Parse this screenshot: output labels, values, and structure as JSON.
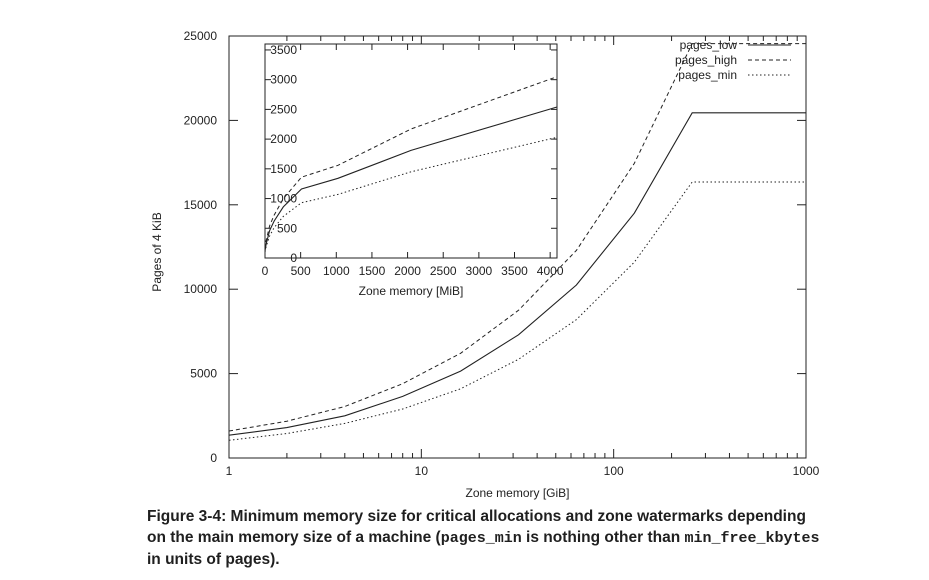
{
  "chart_data": [
    {
      "type": "line",
      "xscale": "log",
      "xlabel": "Zone memory [GiB]",
      "ylabel": "Pages of 4 KiB",
      "xlim": [
        1,
        1000
      ],
      "ylim": [
        0,
        25000
      ],
      "xticks": [
        "1",
        "10",
        "100",
        "1000"
      ],
      "yticks": [
        "0",
        "5000",
        "10000",
        "15000",
        "20000",
        "25000"
      ],
      "legend_position": "top-right",
      "series": [
        {
          "name": "pages_low",
          "style": "solid",
          "x": [
            1,
            2,
            4,
            8,
            16,
            32,
            64,
            128,
            256,
            1000
          ],
          "y": [
            1350,
            1800,
            2500,
            3650,
            5150,
            7300,
            10250,
            14500,
            20450,
            20450
          ]
        },
        {
          "name": "pages_high",
          "style": "dashed",
          "x": [
            1,
            2,
            4,
            8,
            16,
            32,
            64,
            128,
            256,
            1000
          ],
          "y": [
            1600,
            2180,
            3050,
            4400,
            6200,
            8750,
            12300,
            17450,
            24550,
            24550
          ]
        },
        {
          "name": "pages_min",
          "style": "dotted",
          "x": [
            1,
            2,
            4,
            8,
            16,
            32,
            64,
            128,
            256,
            1000
          ],
          "y": [
            1050,
            1450,
            2050,
            2900,
            4100,
            5850,
            8200,
            11600,
            16350,
            16350
          ]
        }
      ]
    },
    {
      "type": "line",
      "inset": true,
      "xlabel": "Zone memory [MiB]",
      "ylabel": "",
      "xlim": [
        0,
        4096
      ],
      "ylim": [
        0,
        3600
      ],
      "xticks": [
        "0",
        "500",
        "1000",
        "1500",
        "2000",
        "2500",
        "3000",
        "3500",
        "4000"
      ],
      "yticks": [
        "0",
        "500",
        "1000",
        "1500",
        "2000",
        "2500",
        "3000",
        "3500"
      ],
      "series": [
        {
          "name": "pages_low",
          "style": "solid",
          "x": [
            0,
            16,
            64,
            128,
            256,
            512,
            1024,
            2048,
            4096
          ],
          "y": [
            120,
            230,
            460,
            620,
            860,
            1160,
            1340,
            1810,
            2540
          ]
        },
        {
          "name": "pages_high",
          "style": "dashed",
          "x": [
            0,
            16,
            64,
            128,
            256,
            512,
            1024,
            2048,
            4096
          ],
          "y": [
            150,
            290,
            540,
            720,
            1000,
            1360,
            1560,
            2170,
            3050
          ]
        },
        {
          "name": "pages_min",
          "style": "dotted",
          "x": [
            0,
            16,
            64,
            128,
            256,
            512,
            1024,
            2048,
            4096
          ],
          "y": [
            100,
            190,
            370,
            510,
            700,
            930,
            1070,
            1450,
            2030
          ]
        }
      ]
    }
  ],
  "caption": {
    "part1": "Figure 3-4: Minimum memory size for critical allocations and zone watermarks depending on the main memory size of a machine (",
    "code1": "pages_min",
    "part2": " is nothing other than ",
    "code2": "min_free_kbytes",
    "part3": " in units of pages)."
  }
}
